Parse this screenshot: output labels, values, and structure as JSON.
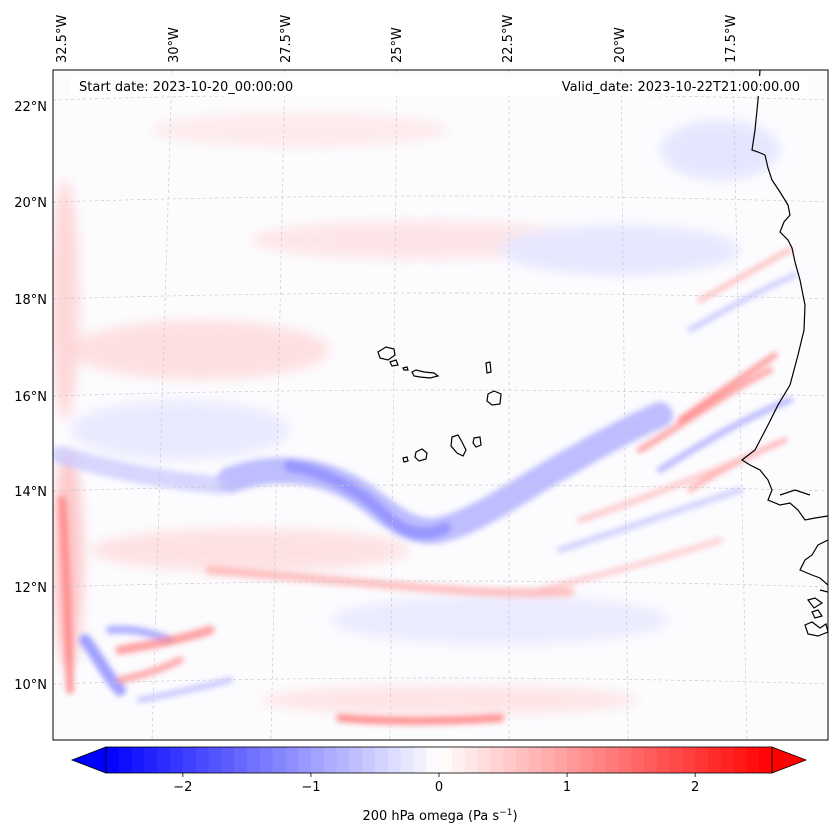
{
  "header": {
    "start_date": "Start date: 2023-10-20_00:00:00",
    "valid_date": "Valid_date: 2023-10-22T21:00:00.00"
  },
  "map": {
    "lon_labels": [
      "32.5°W",
      "30°W",
      "27.5°W",
      "25°W",
      "22.5°W",
      "20°W",
      "17.5°W"
    ],
    "lat_labels": [
      "22°N",
      "20°N",
      "18°N",
      "16°N",
      "14°N",
      "12°N",
      "10°N"
    ],
    "colors": {
      "negative": "#0000ff",
      "zero": "#ffffff",
      "positive": "#ff0000",
      "coast": "#000000",
      "grid": "#c8c8c8"
    }
  },
  "colorbar": {
    "tick_values": [
      -2,
      -1,
      0,
      1,
      2
    ],
    "tick_labels": [
      "−2",
      "−1",
      "0",
      "1",
      "2"
    ],
    "range": [
      -2.6,
      2.6
    ],
    "label_main": "200 hPa omega (Pa s",
    "label_exp": "−1",
    "label_close": ")"
  },
  "chart_data": {
    "type": "heatmap",
    "title": "",
    "variable": "200 hPa omega",
    "units": "Pa s−1",
    "lon_range": [
      -33,
      -15.5
    ],
    "lat_range": [
      9,
      23
    ],
    "vmin": -2.6,
    "vmax": 2.6,
    "features": [
      {
        "name": "weak ascent band",
        "values": [
          -1.5,
          -0.6
        ],
        "description": "blue band from about 27.5°W 14.5°N curving through 25°W 13°N to 20°W 15.5°N"
      },
      {
        "name": "descent streaks near coast",
        "values": [
          0.6,
          1.5
        ],
        "description": "narrow red streaks near 17.5°W 14–17°N"
      },
      {
        "name": "southwest dipole",
        "values": [
          -1.5,
          1.5
        ],
        "description": "alternating blue and red near 31°W 10–11°N"
      }
    ]
  }
}
